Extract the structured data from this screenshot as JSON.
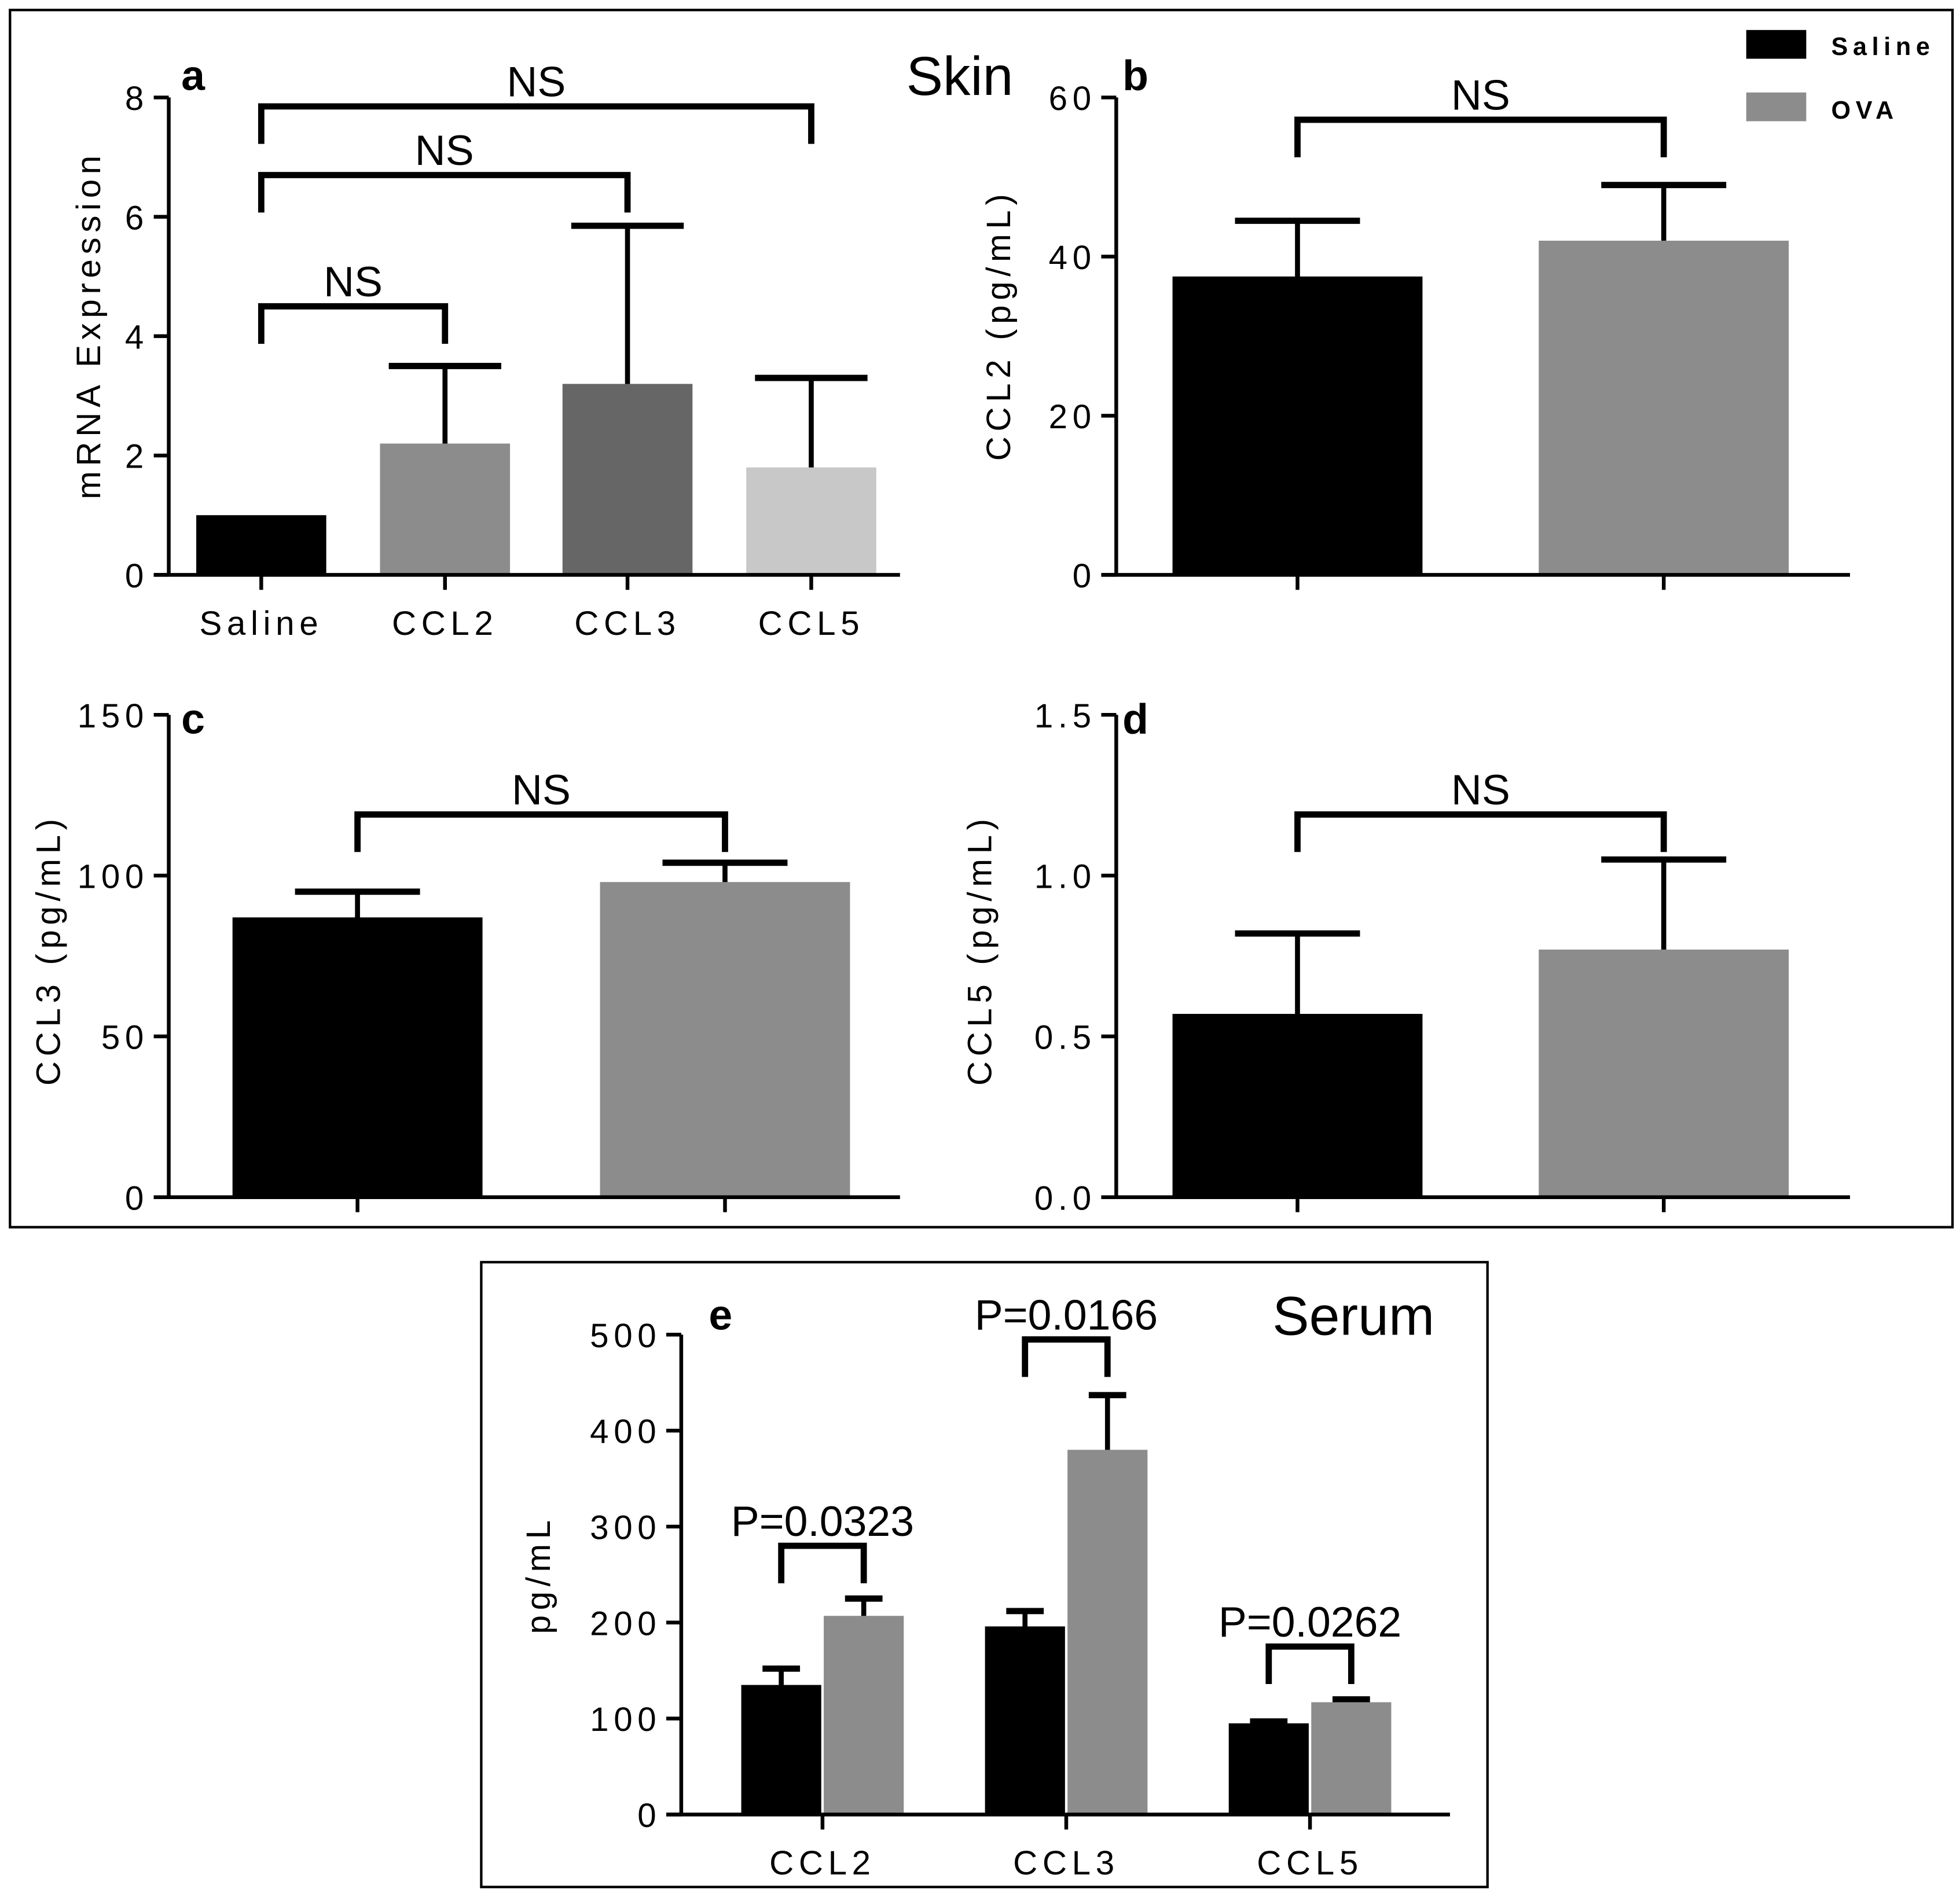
{
  "titles": {
    "skin": "Skin",
    "serum": "Serum"
  },
  "legend": [
    {
      "label": "Saline",
      "color": "#000000"
    },
    {
      "label": "OVA",
      "color": "#8c8c8c"
    }
  ],
  "chart_data": [
    {
      "id": "a",
      "type": "bar",
      "letter": "a",
      "ylabel": "mRNA Expression",
      "ylim": [
        0,
        8
      ],
      "yticks": [
        "0",
        "2",
        "4",
        "6",
        "8"
      ],
      "categories": [
        "Saline",
        "CCL2",
        "CCL3",
        "CCL5"
      ],
      "values": [
        1.0,
        2.2,
        3.2,
        1.8
      ],
      "error_upper": [
        1.0,
        3.5,
        5.85,
        3.3
      ],
      "colors": [
        "#000000",
        "#8c8c8c",
        "#666666",
        "#c8c8c8"
      ],
      "brackets": [
        {
          "from": 0,
          "to": 3,
          "y": 7.85,
          "label": "NS"
        },
        {
          "from": 0,
          "to": 2,
          "y": 6.7,
          "label": "NS"
        },
        {
          "from": 0,
          "to": 1,
          "y": 4.5,
          "label": "NS"
        }
      ]
    },
    {
      "id": "b",
      "type": "bar",
      "letter": "b",
      "ylabel": "CCL2 (pg/mL)",
      "ylim": [
        0,
        60
      ],
      "yticks": [
        "0",
        "20",
        "40",
        "60"
      ],
      "categories": [
        "Saline",
        "OVA"
      ],
      "show_categories": false,
      "values": [
        37.5,
        42.0
      ],
      "error_upper": [
        44.5,
        49.0
      ],
      "colors": [
        "#000000",
        "#8c8c8c"
      ],
      "brackets": [
        {
          "from": 0,
          "to": 1,
          "y": 57.2,
          "label": "NS"
        }
      ]
    },
    {
      "id": "c",
      "type": "bar",
      "letter": "c",
      "ylabel": "CCL3 (pg/mL)",
      "ylim": [
        0,
        150
      ],
      "yticks": [
        "0",
        "50",
        "100",
        "150"
      ],
      "categories": [
        "Saline",
        "OVA"
      ],
      "show_categories": false,
      "values": [
        87,
        98
      ],
      "error_upper": [
        95,
        104
      ],
      "colors": [
        "#000000",
        "#8c8c8c"
      ],
      "brackets": [
        {
          "from": 0,
          "to": 1,
          "y": 119,
          "label": "NS"
        }
      ]
    },
    {
      "id": "d",
      "type": "bar",
      "letter": "d",
      "ylabel": "CCL5 (pg/mL)",
      "ylim": [
        0,
        1.5
      ],
      "yticks": [
        "0.0",
        "0.5",
        "1.0",
        "1.5"
      ],
      "categories": [
        "Saline",
        "OVA"
      ],
      "show_categories": false,
      "values": [
        0.57,
        0.77
      ],
      "error_upper": [
        0.82,
        1.05
      ],
      "colors": [
        "#000000",
        "#8c8c8c"
      ],
      "brackets": [
        {
          "from": 0,
          "to": 1,
          "y": 1.19,
          "label": "NS"
        }
      ]
    },
    {
      "id": "e",
      "type": "bar",
      "letter": "e",
      "ylabel": "pg/mL",
      "ylim": [
        0,
        500
      ],
      "yticks": [
        "0",
        "100",
        "200",
        "300",
        "400",
        "500"
      ],
      "categories": [
        "CCL2",
        "CCL3",
        "CCL5"
      ],
      "series": [
        {
          "name": "Saline",
          "values": [
            135,
            196,
            95
          ],
          "error_upper": [
            152,
            212,
            97
          ],
          "color": "#000000"
        },
        {
          "name": "OVA",
          "values": [
            207,
            380,
            117
          ],
          "error_upper": [
            225,
            437,
            120
          ],
          "color": "#8c8c8c"
        }
      ],
      "brackets": [
        {
          "group": 0,
          "y": 280,
          "label": "P=0.0323"
        },
        {
          "group": 1,
          "y": 495,
          "label": "P=0.0166"
        },
        {
          "group": 2,
          "y": 175,
          "label": "P=0.0262"
        }
      ]
    }
  ]
}
